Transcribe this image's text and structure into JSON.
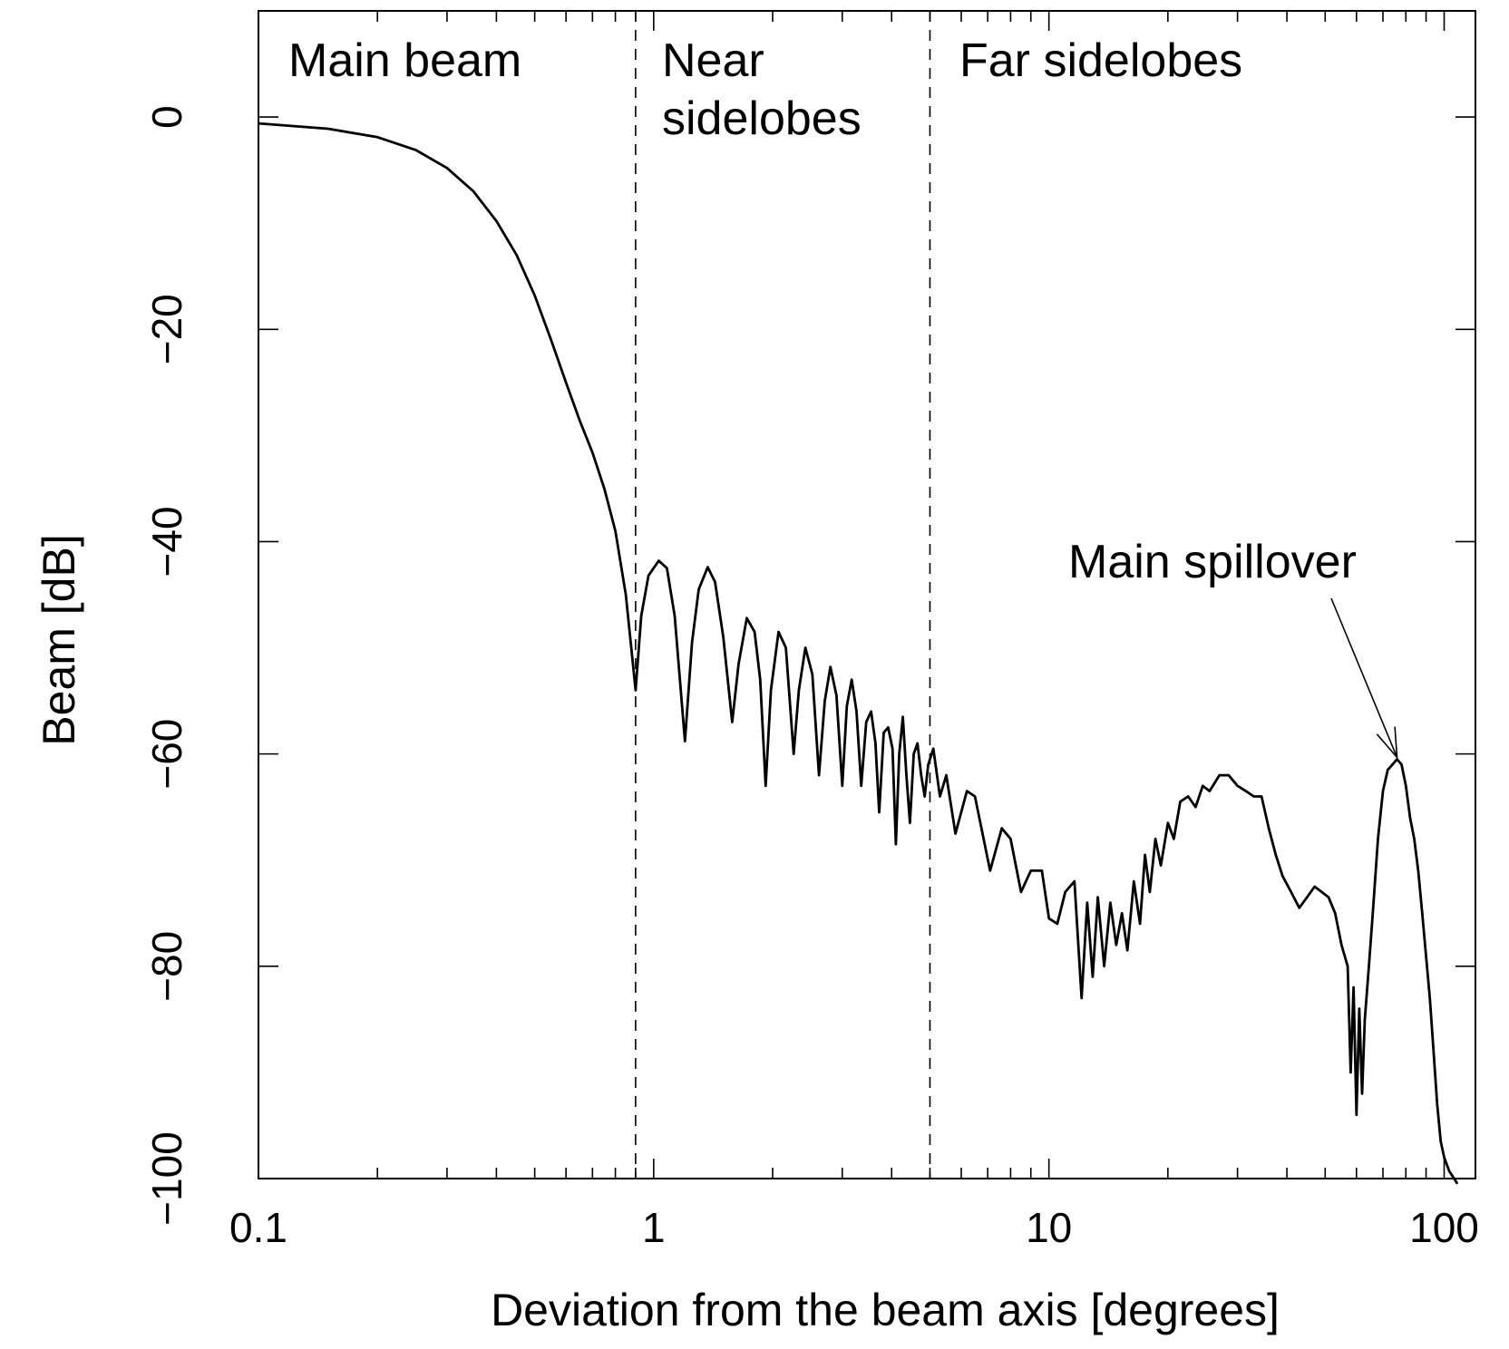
{
  "chart_data": {
    "type": "line",
    "xlabel": "Deviation from the beam axis [degrees]",
    "ylabel": "Beam [dB]",
    "x_scale": "log",
    "xlim": [
      0.1,
      120
    ],
    "ylim": [
      -100,
      10
    ],
    "x_ticks": [
      {
        "value": 0.1,
        "label": "0.1"
      },
      {
        "value": 1,
        "label": "1"
      },
      {
        "value": 10,
        "label": "10"
      },
      {
        "value": 100,
        "label": "100"
      }
    ],
    "y_ticks": [
      {
        "value": 0,
        "label": "0"
      },
      {
        "value": -20,
        "label": "−20"
      },
      {
        "value": -40,
        "label": "−40"
      },
      {
        "value": -60,
        "label": "−60"
      },
      {
        "value": -80,
        "label": "−80"
      },
      {
        "value": -100,
        "label": "−100"
      }
    ],
    "regions": [
      {
        "label": "Main beam",
        "from": 0.1,
        "to": 0.9
      },
      {
        "label_lines": [
          "Near",
          "sidelobes"
        ],
        "from": 0.9,
        "to": 5
      },
      {
        "label": "Far sidelobes",
        "from": 5,
        "to": 120
      }
    ],
    "boundaries": [
      0.9,
      5
    ],
    "annotations": [
      {
        "text": "Main spillover",
        "x": 76,
        "y": -60.5
      }
    ],
    "series": [
      {
        "points": [
          [
            0.1,
            -0.6
          ],
          [
            0.15,
            -1.1
          ],
          [
            0.2,
            -1.9
          ],
          [
            0.25,
            -3.1
          ],
          [
            0.3,
            -4.8
          ],
          [
            0.35,
            -7.0
          ],
          [
            0.4,
            -9.8
          ],
          [
            0.45,
            -13.0
          ],
          [
            0.5,
            -16.8
          ],
          [
            0.55,
            -21.0
          ],
          [
            0.6,
            -25.0
          ],
          [
            0.65,
            -28.6
          ],
          [
            0.7,
            -31.6
          ],
          [
            0.75,
            -35.0
          ],
          [
            0.8,
            -39.0
          ],
          [
            0.85,
            -45.0
          ],
          [
            0.9,
            -54.0
          ],
          [
            0.93,
            -47.0
          ],
          [
            0.97,
            -43.2
          ],
          [
            1.03,
            -41.8
          ],
          [
            1.08,
            -42.5
          ],
          [
            1.13,
            -47.0
          ],
          [
            1.2,
            -58.8
          ],
          [
            1.25,
            -49.5
          ],
          [
            1.3,
            -44.5
          ],
          [
            1.37,
            -42.4
          ],
          [
            1.43,
            -43.8
          ],
          [
            1.5,
            -49.0
          ],
          [
            1.58,
            -57.0
          ],
          [
            1.64,
            -51.5
          ],
          [
            1.72,
            -47.2
          ],
          [
            1.8,
            -48.5
          ],
          [
            1.86,
            -53.0
          ],
          [
            1.92,
            -63.0
          ],
          [
            1.98,
            -54.0
          ],
          [
            2.07,
            -48.5
          ],
          [
            2.16,
            -50.0
          ],
          [
            2.26,
            -60.0
          ],
          [
            2.33,
            -54.0
          ],
          [
            2.42,
            -50.0
          ],
          [
            2.52,
            -52.5
          ],
          [
            2.62,
            -62.0
          ],
          [
            2.71,
            -55.0
          ],
          [
            2.8,
            -51.8
          ],
          [
            2.9,
            -54.5
          ],
          [
            3.0,
            -63.0
          ],
          [
            3.08,
            -55.5
          ],
          [
            3.17,
            -53.0
          ],
          [
            3.26,
            -56.0
          ],
          [
            3.35,
            -63.0
          ],
          [
            3.45,
            -57.0
          ],
          [
            3.55,
            -56.0
          ],
          [
            3.64,
            -59.0
          ],
          [
            3.72,
            -65.5
          ],
          [
            3.82,
            -58.0
          ],
          [
            3.92,
            -57.5
          ],
          [
            4.02,
            -59.5
          ],
          [
            4.1,
            -68.5
          ],
          [
            4.18,
            -60.0
          ],
          [
            4.27,
            -56.5
          ],
          [
            4.36,
            -62.0
          ],
          [
            4.45,
            -66.5
          ],
          [
            4.55,
            -60.0
          ],
          [
            4.65,
            -59.0
          ],
          [
            4.75,
            -62.0
          ],
          [
            4.85,
            -64.0
          ],
          [
            4.95,
            -61.0
          ],
          [
            5.1,
            -59.5
          ],
          [
            5.3,
            -64.0
          ],
          [
            5.5,
            -62.0
          ],
          [
            5.8,
            -67.5
          ],
          [
            6.2,
            -63.5
          ],
          [
            6.5,
            -64.0
          ],
          [
            7.1,
            -71.0
          ],
          [
            7.6,
            -67.0
          ],
          [
            8.0,
            -68.0
          ],
          [
            8.5,
            -73.0
          ],
          [
            9.0,
            -71.0
          ],
          [
            9.6,
            -71.0
          ],
          [
            10.0,
            -75.5
          ],
          [
            10.5,
            -76.0
          ],
          [
            11.0,
            -73.0
          ],
          [
            11.6,
            -72.0
          ],
          [
            12.1,
            -83.0
          ],
          [
            12.5,
            -74.0
          ],
          [
            12.9,
            -81.0
          ],
          [
            13.3,
            -73.5
          ],
          [
            13.8,
            -80.0
          ],
          [
            14.3,
            -74.0
          ],
          [
            14.8,
            -78.0
          ],
          [
            15.3,
            -75.0
          ],
          [
            15.8,
            -78.5
          ],
          [
            16.4,
            -72.0
          ],
          [
            17.0,
            -76.0
          ],
          [
            17.5,
            -69.5
          ],
          [
            18.0,
            -73.0
          ],
          [
            18.6,
            -68.0
          ],
          [
            19.2,
            -70.5
          ],
          [
            20.0,
            -66.5
          ],
          [
            20.7,
            -68.0
          ],
          [
            21.5,
            -64.5
          ],
          [
            22.5,
            -64.0
          ],
          [
            23.5,
            -65.0
          ],
          [
            24.5,
            -63.0
          ],
          [
            25.5,
            -63.5
          ],
          [
            27.0,
            -62.0
          ],
          [
            28.5,
            -62.0
          ],
          [
            30.0,
            -63.0
          ],
          [
            31.5,
            -63.5
          ],
          [
            33.0,
            -64.0
          ],
          [
            34.5,
            -64.0
          ],
          [
            36.0,
            -67.0
          ],
          [
            37.5,
            -69.5
          ],
          [
            39.0,
            -71.5
          ],
          [
            41.0,
            -73.0
          ],
          [
            43.0,
            -74.5
          ],
          [
            45.0,
            -73.5
          ],
          [
            47.0,
            -72.5
          ],
          [
            49.0,
            -73.0
          ],
          [
            51.0,
            -73.5
          ],
          [
            53.0,
            -75.0
          ],
          [
            55.0,
            -78.0
          ],
          [
            57.0,
            -80.0
          ],
          [
            58.0,
            -90.0
          ],
          [
            59.0,
            -82.0
          ],
          [
            60.0,
            -94.0
          ],
          [
            61.0,
            -84.0
          ],
          [
            62.0,
            -92.0
          ],
          [
            63.0,
            -85.0
          ],
          [
            64.5,
            -80.0
          ],
          [
            66.0,
            -75.0
          ],
          [
            68.0,
            -68.0
          ],
          [
            70.0,
            -63.5
          ],
          [
            72.0,
            -61.5
          ],
          [
            74.0,
            -61.0
          ],
          [
            76.0,
            -60.5
          ],
          [
            78.0,
            -61.0
          ],
          [
            80.0,
            -63.0
          ],
          [
            82.0,
            -66.0
          ],
          [
            84.0,
            -68.0
          ],
          [
            86.0,
            -71.0
          ],
          [
            88.0,
            -75.0
          ],
          [
            90.0,
            -79.0
          ],
          [
            92.0,
            -83.0
          ],
          [
            94.0,
            -88.0
          ],
          [
            96.0,
            -93.0
          ],
          [
            98.0,
            -96.5
          ],
          [
            100.0,
            -98.0
          ],
          [
            103.0,
            -99.3
          ],
          [
            106.0,
            -100.0
          ],
          [
            108.0,
            -100.5
          ]
        ]
      }
    ]
  }
}
